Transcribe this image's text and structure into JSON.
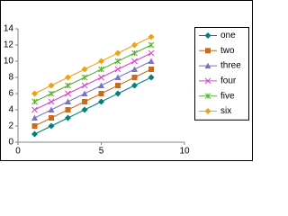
{
  "chart_data": {
    "type": "line",
    "x": [
      1,
      2,
      3,
      4,
      5,
      6,
      7,
      8
    ],
    "series": [
      {
        "name": "one",
        "color": "#00807a",
        "marker": "diamond",
        "values": [
          1,
          2,
          3,
          4,
          5,
          6,
          7,
          8
        ]
      },
      {
        "name": "two",
        "color": "#cc6a1a",
        "marker": "square",
        "values": [
          2,
          3,
          4,
          5,
          6,
          7,
          8,
          9
        ]
      },
      {
        "name": "three",
        "color": "#7b72c8",
        "marker": "triangle",
        "values": [
          3,
          4,
          5,
          6,
          7,
          8,
          9,
          10
        ]
      },
      {
        "name": "four",
        "color": "#e040c8",
        "marker": "x",
        "values": [
          4,
          5,
          6,
          7,
          8,
          9,
          10,
          11
        ]
      },
      {
        "name": "five",
        "color": "#58b030",
        "marker": "star",
        "values": [
          5,
          6,
          7,
          8,
          9,
          10,
          11,
          12
        ]
      },
      {
        "name": "six",
        "color": "#f0a010",
        "marker": "diamond",
        "values": [
          6,
          7,
          8,
          9,
          10,
          11,
          12,
          13
        ]
      }
    ],
    "xlim": [
      0,
      10
    ],
    "xticks": [
      0,
      5,
      10
    ],
    "ylim": [
      0,
      14
    ],
    "yticks": [
      0,
      2,
      4,
      6,
      8,
      10,
      12,
      14
    ],
    "grid": false,
    "legend": "right"
  }
}
